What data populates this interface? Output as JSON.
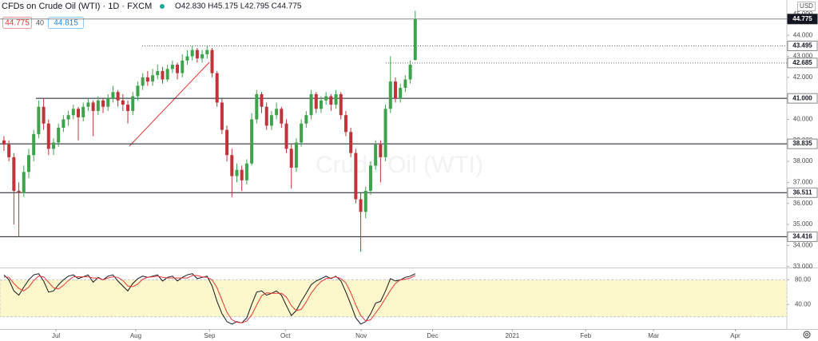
{
  "chart_data": {
    "type": "candlestick",
    "title": "CFDs on Crude Oil (WTI) · 1D · FXCM",
    "ohlc_label": "O42.830 H45.175 L42.795 C44.775",
    "sell_price": "44.775",
    "spread": "40",
    "buy_price": "44.815",
    "currency": "USD",
    "watermark": "Crude Oil (WTI)",
    "up_color": "#3fa34d",
    "down_color": "#c0333a",
    "xlim": [
      -0.8,
      158
    ],
    "ylim": [
      32.95,
      45.3
    ],
    "grid": false,
    "xticks": [
      {
        "value": 10.5,
        "label": "Jul"
      },
      {
        "value": 26.6,
        "label": "Aug"
      },
      {
        "value": 41.5,
        "label": "Sep"
      },
      {
        "value": 56.8,
        "label": "Oct"
      },
      {
        "value": 72.1,
        "label": "Nov"
      },
      {
        "value": 86.5,
        "label": "Dec"
      },
      {
        "value": 102.6,
        "label": "2021"
      },
      {
        "value": 117.4,
        "label": "Feb"
      },
      {
        "value": 131.1,
        "label": "Mar"
      },
      {
        "value": 147.6,
        "label": "Apr"
      }
    ],
    "yticks": [
      {
        "value": 33,
        "label": "33.000"
      },
      {
        "value": 34,
        "label": "34.000"
      },
      {
        "value": 35,
        "label": "35.000"
      },
      {
        "value": 36,
        "label": "36.000"
      },
      {
        "value": 37,
        "label": "37.000"
      },
      {
        "value": 38,
        "label": "38.000"
      },
      {
        "value": 39,
        "label": "39.000"
      },
      {
        "value": 40,
        "label": "40.000"
      },
      {
        "value": 41,
        "label": "41.000"
      },
      {
        "value": 42,
        "label": "42.000"
      },
      {
        "value": 43,
        "label": "43.000"
      },
      {
        "value": 44,
        "label": "44.000"
      },
      {
        "value": 45,
        "label": "45.000"
      }
    ],
    "current_price": 44.775,
    "dotted_levels": [
      43.495,
      42.685
    ],
    "levels": [
      {
        "value": 41,
        "label": "41.000"
      },
      38.835,
      36.511,
      34.416
    ],
    "candles": [
      [
        39.0,
        39.2,
        38.5,
        38.8
      ],
      [
        38.8,
        39.0,
        38.0,
        38.2
      ],
      [
        38.2,
        38.4,
        35.0,
        36.6
      ],
      [
        36.6,
        37.0,
        34.4,
        36.5
      ],
      [
        36.5,
        37.8,
        36.3,
        37.5
      ],
      [
        37.5,
        38.6,
        37.2,
        38.3
      ],
      [
        38.3,
        39.5,
        38.0,
        39.3
      ],
      [
        39.3,
        40.9,
        39.1,
        40.6
      ],
      [
        40.6,
        41.0,
        39.5,
        39.8
      ],
      [
        39.8,
        40.0,
        38.3,
        38.6
      ],
      [
        38.6,
        39.1,
        38.3,
        38.9
      ],
      [
        38.9,
        39.8,
        38.7,
        39.6
      ],
      [
        39.6,
        40.2,
        39.4,
        40.0
      ],
      [
        40.0,
        40.4,
        39.7,
        40.2
      ],
      [
        40.2,
        40.7,
        40.0,
        40.5
      ],
      [
        40.5,
        40.6,
        39.0,
        40.1
      ],
      [
        40.1,
        40.8,
        39.9,
        40.6
      ],
      [
        40.6,
        41.0,
        40.4,
        40.8
      ],
      [
        40.8,
        40.9,
        39.2,
        40.4
      ],
      [
        40.4,
        41.1,
        40.2,
        40.9
      ],
      [
        40.9,
        41.0,
        40.3,
        40.6
      ],
      [
        40.6,
        41.2,
        40.4,
        41.0
      ],
      [
        41.0,
        41.6,
        40.8,
        41.3
      ],
      [
        41.3,
        41.4,
        40.6,
        40.9
      ],
      [
        40.9,
        41.2,
        40.4,
        40.7
      ],
      [
        40.7,
        40.9,
        39.8,
        40.4
      ],
      [
        40.4,
        41.3,
        40.2,
        41.1
      ],
      [
        41.1,
        41.8,
        40.9,
        41.6
      ],
      [
        41.6,
        42.2,
        41.4,
        42.0
      ],
      [
        42.0,
        42.3,
        41.6,
        41.8
      ],
      [
        41.8,
        42.4,
        41.6,
        42.1
      ],
      [
        42.1,
        42.6,
        41.9,
        42.3
      ],
      [
        42.3,
        42.5,
        41.7,
        41.9
      ],
      [
        41.9,
        42.6,
        41.8,
        42.4
      ],
      [
        42.4,
        42.8,
        42.2,
        42.6
      ],
      [
        42.6,
        42.7,
        41.9,
        42.2
      ],
      [
        42.2,
        43.1,
        42.0,
        42.8
      ],
      [
        42.8,
        43.3,
        42.6,
        43.0
      ],
      [
        43.0,
        43.5,
        42.8,
        43.3
      ],
      [
        43.3,
        43.4,
        42.7,
        42.9
      ],
      [
        42.9,
        43.3,
        42.7,
        43.1
      ],
      [
        43.1,
        43.5,
        42.9,
        43.3
      ],
      [
        43.3,
        43.4,
        42.0,
        42.2
      ],
      [
        42.2,
        42.3,
        40.6,
        40.8
      ],
      [
        40.8,
        41.0,
        39.3,
        39.5
      ],
      [
        39.5,
        39.7,
        38.0,
        38.3
      ],
      [
        38.3,
        38.6,
        36.3,
        37.3
      ],
      [
        37.3,
        37.9,
        37.0,
        37.6
      ],
      [
        37.6,
        37.8,
        36.6,
        37.1
      ],
      [
        37.1,
        38.1,
        36.9,
        37.9
      ],
      [
        37.9,
        40.3,
        37.8,
        40.0
      ],
      [
        40.0,
        41.4,
        39.8,
        41.2
      ],
      [
        41.2,
        41.3,
        40.3,
        40.6
      ],
      [
        40.6,
        40.8,
        39.5,
        39.7
      ],
      [
        39.7,
        40.4,
        39.5,
        40.2
      ],
      [
        40.2,
        40.8,
        40.0,
        40.5
      ],
      [
        40.5,
        40.6,
        39.6,
        39.8
      ],
      [
        39.8,
        40.0,
        38.4,
        38.6
      ],
      [
        38.6,
        38.8,
        36.7,
        37.7
      ],
      [
        37.7,
        39.1,
        37.5,
        38.9
      ],
      [
        38.9,
        40.0,
        38.7,
        39.8
      ],
      [
        39.8,
        40.4,
        39.6,
        40.2
      ],
      [
        40.2,
        41.4,
        40.0,
        41.2
      ],
      [
        41.2,
        41.3,
        40.3,
        40.5
      ],
      [
        40.5,
        41.1,
        40.3,
        40.9
      ],
      [
        40.9,
        41.3,
        40.7,
        41.1
      ],
      [
        41.1,
        41.2,
        40.4,
        40.7
      ],
      [
        40.7,
        41.4,
        40.5,
        41.2
      ],
      [
        41.2,
        41.3,
        40.0,
        40.2
      ],
      [
        40.2,
        40.4,
        39.2,
        39.4
      ],
      [
        39.4,
        39.6,
        38.2,
        38.4
      ],
      [
        38.4,
        38.6,
        36.0,
        36.2
      ],
      [
        36.2,
        36.5,
        33.7,
        35.6
      ],
      [
        35.6,
        36.8,
        35.3,
        36.6
      ],
      [
        36.6,
        38.0,
        36.4,
        37.8
      ],
      [
        37.8,
        39.0,
        37.6,
        38.8
      ],
      [
        38.8,
        39.0,
        37.0,
        38.2
      ],
      [
        38.2,
        40.7,
        38.0,
        40.5
      ],
      [
        40.5,
        43.0,
        40.3,
        41.8
      ],
      [
        41.8,
        42.0,
        40.8,
        41.0
      ],
      [
        41.0,
        41.7,
        40.8,
        41.5
      ],
      [
        41.5,
        42.1,
        41.3,
        41.9
      ],
      [
        41.9,
        42.8,
        41.7,
        42.6
      ],
      [
        42.83,
        45.175,
        42.795,
        44.775
      ]
    ],
    "oscillator": {
      "ylim": [
        0,
        100
      ],
      "yticks": [
        {
          "value": 80,
          "label": "80.00"
        },
        {
          "value": 40,
          "label": "40.00"
        }
      ],
      "band": [
        20,
        80
      ],
      "band_color": "#fdf7cc",
      "series": [
        {
          "color": "#131722",
          "values": [
            88,
            80,
            62,
            55,
            68,
            80,
            88,
            90,
            78,
            60,
            62,
            72,
            80,
            86,
            88,
            82,
            85,
            88,
            76,
            84,
            80,
            86,
            88,
            78,
            70,
            62,
            74,
            82,
            86,
            84,
            86,
            88,
            78,
            84,
            86,
            78,
            84,
            88,
            90,
            82,
            84,
            86,
            70,
            45,
            25,
            12,
            8,
            12,
            10,
            18,
            40,
            60,
            62,
            55,
            58,
            62,
            55,
            38,
            22,
            30,
            45,
            58,
            72,
            78,
            82,
            86,
            82,
            86,
            78,
            60,
            40,
            18,
            8,
            12,
            25,
            42,
            45,
            62,
            82,
            78,
            80,
            84,
            86,
            90
          ]
        },
        {
          "color": "#e53935",
          "values": [
            85,
            84,
            74,
            66,
            62,
            68,
            79,
            86,
            85,
            76,
            67,
            65,
            71,
            79,
            85,
            85,
            85,
            85,
            83,
            83,
            80,
            83,
            85,
            84,
            79,
            70,
            69,
            73,
            81,
            84,
            85,
            86,
            84,
            83,
            83,
            83,
            83,
            83,
            87,
            87,
            85,
            84,
            80,
            67,
            47,
            27,
            15,
            11,
            10,
            13,
            23,
            39,
            54,
            59,
            58,
            58,
            58,
            52,
            38,
            30,
            32,
            44,
            58,
            69,
            77,
            82,
            83,
            85,
            82,
            75,
            59,
            39,
            22,
            13,
            15,
            26,
            37,
            50,
            63,
            74,
            80,
            81,
            83,
            87
          ]
        }
      ]
    }
  }
}
